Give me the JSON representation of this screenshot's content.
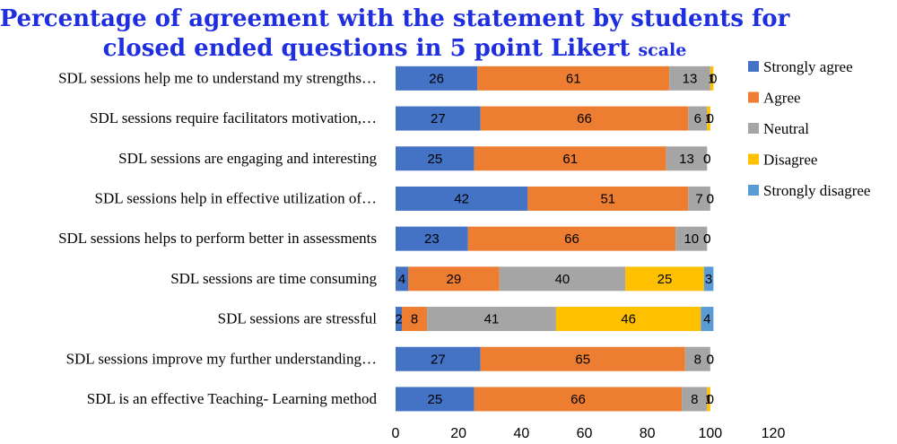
{
  "chart_data": {
    "type": "bar",
    "orientation": "horizontal",
    "stacked": true,
    "title_line1": "Percentage of agreement with the statement  by students for",
    "title_line2_main": "closed ended questions in 5 point Likert ",
    "title_line2_tail": "scale",
    "categories": [
      "SDL sessions help me to understand my strengths…",
      "SDL sessions require facilitators motivation,…",
      "SDL sessions are engaging and interesting",
      "SDL sessions help in effective utilization of…",
      "SDL sessions helps to perform better in assessments",
      "SDL sessions are time consuming",
      "SDL sessions are stressful",
      "SDL sessions improve my further understanding…",
      "SDL is an effective Teaching- Learning method"
    ],
    "series": [
      {
        "name": "Strongly agree",
        "color": "#4472c4",
        "values": [
          26,
          27,
          25,
          42,
          23,
          4,
          2,
          27,
          25
        ]
      },
      {
        "name": "Agree",
        "color": "#ed7d31",
        "values": [
          61,
          66,
          61,
          51,
          66,
          29,
          8,
          65,
          66
        ]
      },
      {
        "name": "Neutral",
        "color": "#a5a5a5",
        "values": [
          13,
          6,
          13,
          7,
          10,
          40,
          41,
          8,
          8
        ]
      },
      {
        "name": "Disagree",
        "color": "#ffc000",
        "values": [
          1,
          1,
          0,
          0,
          0,
          25,
          46,
          0,
          1
        ]
      },
      {
        "name": "Strongly disagree",
        "color": "#5b9bd5",
        "values": [
          0,
          0,
          0,
          0,
          0,
          3,
          4,
          0,
          0
        ]
      }
    ],
    "xlim": [
      0,
      120
    ],
    "xticks": [
      0,
      20,
      40,
      60,
      80,
      100,
      120
    ],
    "grid": false,
    "legend": "right"
  }
}
